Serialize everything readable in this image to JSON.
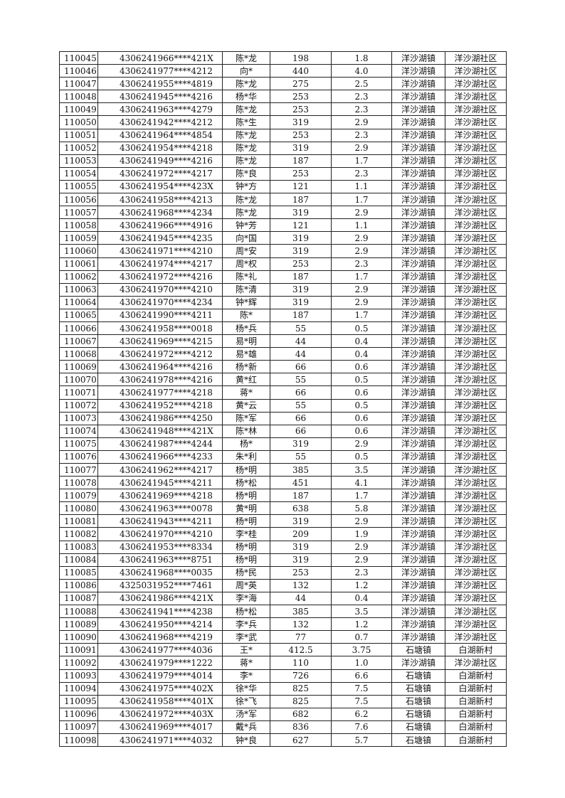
{
  "table": {
    "rows": [
      [
        "110045",
        "4306241966****421X",
        "陈*龙",
        "198",
        "1.8",
        "洋沙湖镇",
        "洋沙湖社区"
      ],
      [
        "110046",
        "4306241977****4212",
        "向*",
        "440",
        "4.0",
        "洋沙湖镇",
        "洋沙湖社区"
      ],
      [
        "110047",
        "4306241955****4819",
        "陈*龙",
        "275",
        "2.5",
        "洋沙湖镇",
        "洋沙湖社区"
      ],
      [
        "110048",
        "4306241945****4216",
        "杨*华",
        "253",
        "2.3",
        "洋沙湖镇",
        "洋沙湖社区"
      ],
      [
        "110049",
        "4306241963****4279",
        "陈*龙",
        "253",
        "2.3",
        "洋沙湖镇",
        "洋沙湖社区"
      ],
      [
        "110050",
        "4306241942****4212",
        "陈*生",
        "319",
        "2.9",
        "洋沙湖镇",
        "洋沙湖社区"
      ],
      [
        "110051",
        "4306241964****4854",
        "陈*龙",
        "253",
        "2.3",
        "洋沙湖镇",
        "洋沙湖社区"
      ],
      [
        "110052",
        "4306241954****4218",
        "陈*龙",
        "319",
        "2.9",
        "洋沙湖镇",
        "洋沙湖社区"
      ],
      [
        "110053",
        "4306241949****4216",
        "陈*龙",
        "187",
        "1.7",
        "洋沙湖镇",
        "洋沙湖社区"
      ],
      [
        "110054",
        "4306241972****4217",
        "陈*良",
        "253",
        "2.3",
        "洋沙湖镇",
        "洋沙湖社区"
      ],
      [
        "110055",
        "4306241954****423X",
        "钟*方",
        "121",
        "1.1",
        "洋沙湖镇",
        "洋沙湖社区"
      ],
      [
        "110056",
        "4306241958****4213",
        "陈*龙",
        "187",
        "1.7",
        "洋沙湖镇",
        "洋沙湖社区"
      ],
      [
        "110057",
        "4306241968****4234",
        "陈*龙",
        "319",
        "2.9",
        "洋沙湖镇",
        "洋沙湖社区"
      ],
      [
        "110058",
        "4306241966****4916",
        "钟*芳",
        "121",
        "1.1",
        "洋沙湖镇",
        "洋沙湖社区"
      ],
      [
        "110059",
        "4306241945****4235",
        "向*国",
        "319",
        "2.9",
        "洋沙湖镇",
        "洋沙湖社区"
      ],
      [
        "110060",
        "4306241971****4210",
        "周*安",
        "319",
        "2.9",
        "洋沙湖镇",
        "洋沙湖社区"
      ],
      [
        "110061",
        "4306241974****4217",
        "周*权",
        "253",
        "2.3",
        "洋沙湖镇",
        "洋沙湖社区"
      ],
      [
        "110062",
        "4306241972****4216",
        "陈*礼",
        "187",
        "1.7",
        "洋沙湖镇",
        "洋沙湖社区"
      ],
      [
        "110063",
        "4306241970****4210",
        "陈*清",
        "319",
        "2.9",
        "洋沙湖镇",
        "洋沙湖社区"
      ],
      [
        "110064",
        "4306241970****4234",
        "钟*辉",
        "319",
        "2.9",
        "洋沙湖镇",
        "洋沙湖社区"
      ],
      [
        "110065",
        "4306241990****4211",
        "陈*",
        "187",
        "1.7",
        "洋沙湖镇",
        "洋沙湖社区"
      ],
      [
        "110066",
        "4306241958****0018",
        "杨*兵",
        "55",
        "0.5",
        "洋沙湖镇",
        "洋沙湖社区"
      ],
      [
        "110067",
        "4306241969****4215",
        "易*明",
        "44",
        "0.4",
        "洋沙湖镇",
        "洋沙湖社区"
      ],
      [
        "110068",
        "4306241972****4212",
        "易*雄",
        "44",
        "0.4",
        "洋沙湖镇",
        "洋沙湖社区"
      ],
      [
        "110069",
        "4306241964****4216",
        "杨*新",
        "66",
        "0.6",
        "洋沙湖镇",
        "洋沙湖社区"
      ],
      [
        "110070",
        "4306241978****4216",
        "黄*红",
        "55",
        "0.5",
        "洋沙湖镇",
        "洋沙湖社区"
      ],
      [
        "110071",
        "4306241977****4218",
        "蒋*",
        "66",
        "0.6",
        "洋沙湖镇",
        "洋沙湖社区"
      ],
      [
        "110072",
        "4306241952****4218",
        "黄*云",
        "55",
        "0.5",
        "洋沙湖镇",
        "洋沙湖社区"
      ],
      [
        "110073",
        "4306241986****4250",
        "陈*军",
        "66",
        "0.6",
        "洋沙湖镇",
        "洋沙湖社区"
      ],
      [
        "110074",
        "4306241948****421X",
        "陈*林",
        "66",
        "0.6",
        "洋沙湖镇",
        "洋沙湖社区"
      ],
      [
        "110075",
        "4306241987****4244",
        "杨*",
        "319",
        "2.9",
        "洋沙湖镇",
        "洋沙湖社区"
      ],
      [
        "110076",
        "4306241966****4233",
        "朱*利",
        "55",
        "0.5",
        "洋沙湖镇",
        "洋沙湖社区"
      ],
      [
        "110077",
        "4306241962****4217",
        "杨*明",
        "385",
        "3.5",
        "洋沙湖镇",
        "洋沙湖社区"
      ],
      [
        "110078",
        "4306241945****4211",
        "杨*松",
        "451",
        "4.1",
        "洋沙湖镇",
        "洋沙湖社区"
      ],
      [
        "110079",
        "4306241969****4218",
        "杨*明",
        "187",
        "1.7",
        "洋沙湖镇",
        "洋沙湖社区"
      ],
      [
        "110080",
        "4306241963****0078",
        "黄*明",
        "638",
        "5.8",
        "洋沙湖镇",
        "洋沙湖社区"
      ],
      [
        "110081",
        "4306241943****4211",
        "杨*明",
        "319",
        "2.9",
        "洋沙湖镇",
        "洋沙湖社区"
      ],
      [
        "110082",
        "4306241970****4210",
        "李*桂",
        "209",
        "1.9",
        "洋沙湖镇",
        "洋沙湖社区"
      ],
      [
        "110083",
        "4306241953****8334",
        "杨*明",
        "319",
        "2.9",
        "洋沙湖镇",
        "洋沙湖社区"
      ],
      [
        "110084",
        "4306241963****8751",
        "杨*明",
        "319",
        "2.9",
        "洋沙湖镇",
        "洋沙湖社区"
      ],
      [
        "110085",
        "4306241968****0035",
        "杨*民",
        "253",
        "2.3",
        "洋沙湖镇",
        "洋沙湖社区"
      ],
      [
        "110086",
        "4325031952****7461",
        "周*英",
        "132",
        "1.2",
        "洋沙湖镇",
        "洋沙湖社区"
      ],
      [
        "110087",
        "4306241986****421X",
        "李*海",
        "44",
        "0.4",
        "洋沙湖镇",
        "洋沙湖社区"
      ],
      [
        "110088",
        "4306241941****4238",
        "杨*松",
        "385",
        "3.5",
        "洋沙湖镇",
        "洋沙湖社区"
      ],
      [
        "110089",
        "4306241950****4214",
        "李*兵",
        "132",
        "1.2",
        "洋沙湖镇",
        "洋沙湖社区"
      ],
      [
        "110090",
        "4306241968****4219",
        "李*武",
        "77",
        "0.7",
        "洋沙湖镇",
        "洋沙湖社区"
      ],
      [
        "110091",
        "4306241977****4036",
        "王*",
        "412.5",
        "3.75",
        "石塘镇",
        "白湖新村"
      ],
      [
        "110092",
        "4306241979****1222",
        "蒋*",
        "110",
        "1.0",
        "洋沙湖镇",
        "洋沙湖社区"
      ],
      [
        "110093",
        "4306241979****4014",
        "李*",
        "726",
        "6.6",
        "石塘镇",
        "白湖新村"
      ],
      [
        "110094",
        "4306241975****402X",
        "徐*华",
        "825",
        "7.5",
        "石塘镇",
        "白湖新村"
      ],
      [
        "110095",
        "4306241958****401X",
        "徐*飞",
        "825",
        "7.5",
        "石塘镇",
        "白湖新村"
      ],
      [
        "110096",
        "4306241972****403X",
        "汤*军",
        "682",
        "6.2",
        "石塘镇",
        "白湖新村"
      ],
      [
        "110097",
        "4306241969****4017",
        "戴*兵",
        "836",
        "7.6",
        "石塘镇",
        "白湖新村"
      ],
      [
        "110098",
        "4306241971****4032",
        "钟*良",
        "627",
        "5.7",
        "石塘镇",
        "白湖新村"
      ]
    ]
  }
}
